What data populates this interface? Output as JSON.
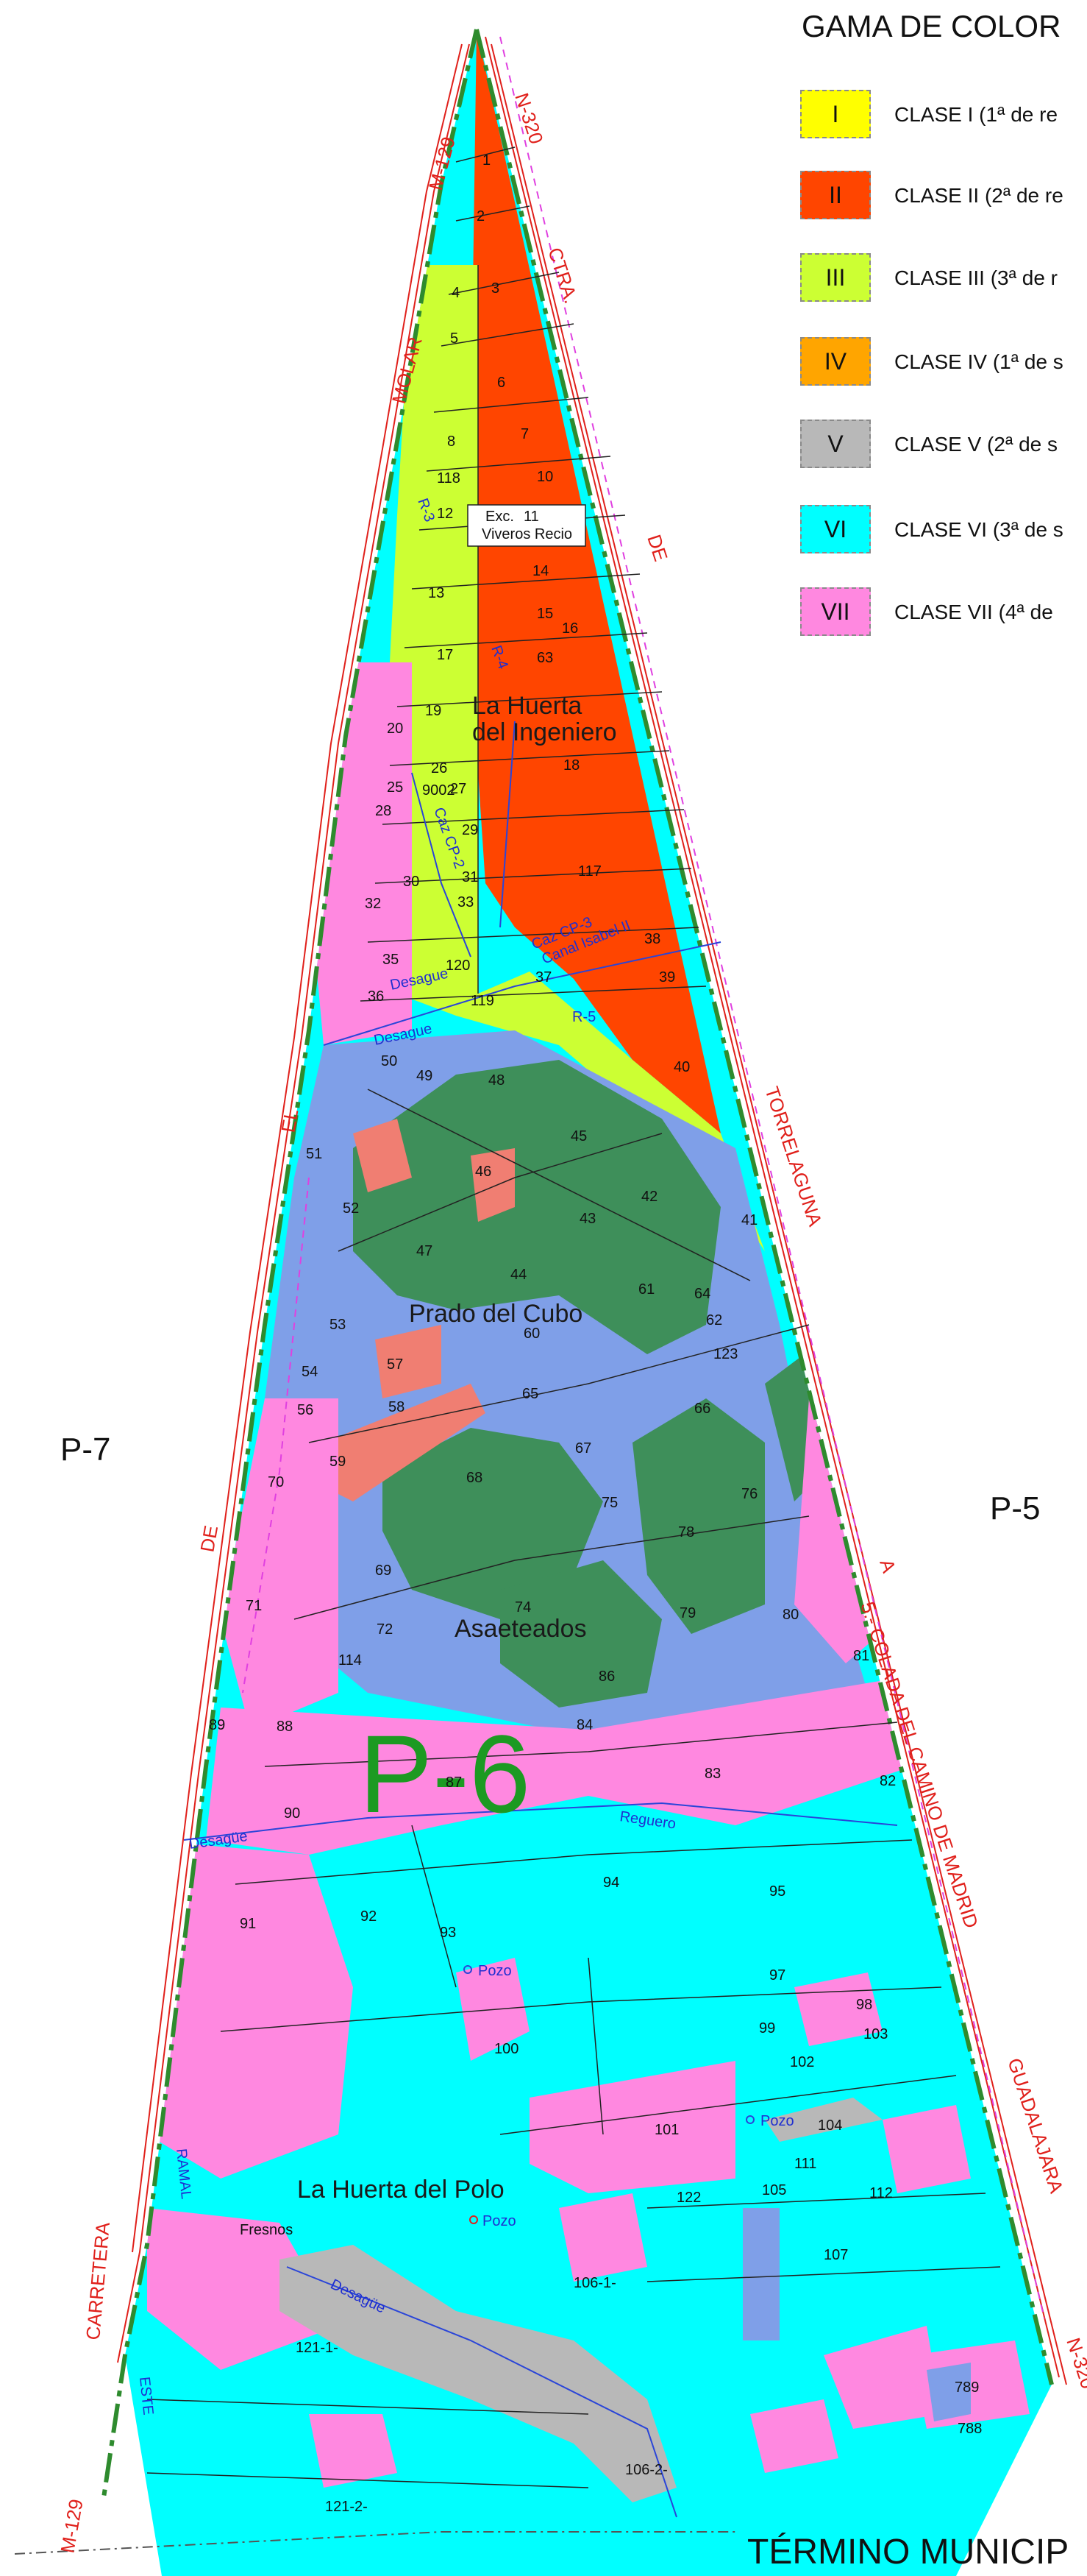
{
  "legend": {
    "title": "GAMA DE COLOR",
    "items": [
      {
        "code": "I",
        "label": "CLASE I (1ª de re",
        "color": "#ffff00"
      },
      {
        "code": "II",
        "label": "CLASE II (2ª de re",
        "color": "#ff4500"
      },
      {
        "code": "III",
        "label": "CLASE III (3ª de r",
        "color": "#ccff33"
      },
      {
        "code": "IV",
        "label": "CLASE IV (1ª de s",
        "color": "#ffa500"
      },
      {
        "code": "V",
        "label": "CLASE V (2ª de s",
        "color": "#b8b8b8"
      },
      {
        "code": "VI",
        "label": "CLASE VI (3ª de s",
        "color": "#00ffff"
      },
      {
        "code": "VII",
        "label": "CLASE VII (4ª de",
        "color": "#ff88e0"
      }
    ]
  },
  "colors": {
    "class_viii": "#7f9fe8",
    "class_ix": "#3e8f5a",
    "class_x": "#f07e72"
  },
  "roads": {
    "m129_top": "M-129",
    "n320_top": "N-320",
    "ctra": "CTRA.",
    "molar": "MOLAR",
    "de_right": "DE",
    "torrelaguna": "TORRELAGUNA",
    "el": "EL",
    "de_left": "DE",
    "a": "A",
    "guadalajara": "GUADALAJARA",
    "n320_bottom": "N-320",
    "carretera": "CARRETERA",
    "m129_bottom": "M-129",
    "ramal": "RAMAL",
    "este": "ESTE"
  },
  "places": {
    "huerta_ingeniero_1": "La Huerta",
    "huerta_ingeniero_2": "del Ingeniero",
    "prado_cubo": "Prado del Cubo",
    "asaeteados": "Asaeteados",
    "huerta_polo": "La Huerta del Polo",
    "p6": "P-6",
    "p7": "P-7",
    "p5": "P-5"
  },
  "features": {
    "exc_1": "Exc.",
    "exc_2": "Viveros Recio",
    "colada": "5.- COLADA DEL CAMINO DE MADRID",
    "canal": "Canal Isabel II",
    "cazcp3": "Caz CP-3",
    "cazcp2": "Caz CP-2",
    "r5": "R-5",
    "r4": "R-4",
    "r3": "R-3",
    "desague_1": "Desague",
    "desague_2": "Desague",
    "desague_3": "Desagüe",
    "desague_4": "Desagüe",
    "reguero": "Reguero",
    "pozo_1": "Pozo",
    "pozo_2": "Pozo",
    "pozo_3": "Pozo",
    "fresnos": "Fresnos"
  },
  "parcels": [
    "1",
    "2",
    "3",
    "4",
    "5",
    "6",
    "7",
    "8",
    "10",
    "11",
    "12",
    "13",
    "14",
    "15",
    "16",
    "17",
    "18",
    "19",
    "20",
    "25",
    "26",
    "27",
    "28",
    "29",
    "30",
    "31",
    "32",
    "33",
    "35",
    "36",
    "37",
    "38",
    "39",
    "40",
    "41",
    "42",
    "43",
    "44",
    "45",
    "46",
    "47",
    "48",
    "49",
    "50",
    "51",
    "52",
    "53",
    "54",
    "56",
    "57",
    "58",
    "59",
    "60",
    "61",
    "62",
    "63",
    "64",
    "65",
    "66",
    "67",
    "68",
    "69",
    "70",
    "71",
    "72",
    "74",
    "75",
    "76",
    "78",
    "79",
    "80",
    "81",
    "82",
    "83",
    "84",
    "86",
    "87",
    "88",
    "89",
    "90",
    "91",
    "92",
    "93",
    "94",
    "95",
    "97",
    "98",
    "99",
    "100",
    "101",
    "102",
    "103",
    "104",
    "105",
    "106-1-",
    "106-2-",
    "107",
    "111",
    "112",
    "114",
    "117",
    "118",
    "119",
    "120",
    "121-1-",
    "121-2-",
    "122",
    "123",
    "788",
    "789",
    "9002"
  ],
  "bottom_text": "TÉRMINO MUNICIP"
}
